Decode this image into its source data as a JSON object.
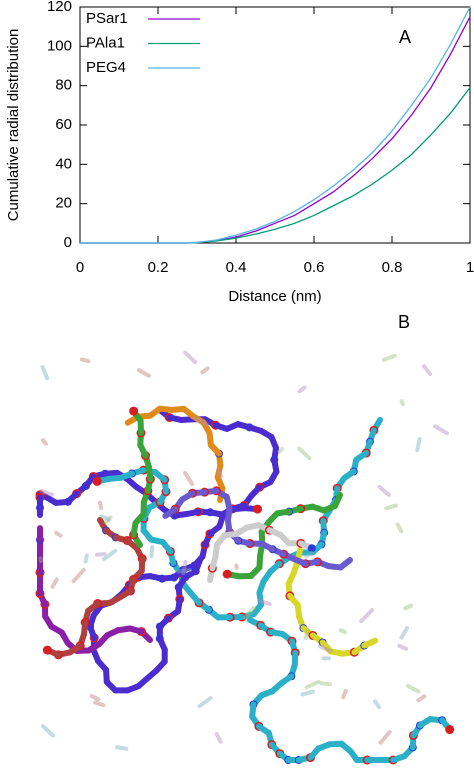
{
  "chart_data": {
    "type": "line",
    "xlabel": "Distance (nm)",
    "ylabel": "Cumulative radial distribution",
    "annotation": "A",
    "x": [
      0,
      0.1,
      0.2,
      0.28,
      0.3,
      0.35,
      0.4,
      0.45,
      0.5,
      0.55,
      0.6,
      0.65,
      0.7,
      0.75,
      0.8,
      0.85,
      0.9,
      0.95,
      1.0
    ],
    "series": [
      {
        "name": "PSar1",
        "color": "#9400d3",
        "values": [
          0,
          0,
          0,
          0,
          0.2,
          1.2,
          3,
          6,
          10,
          14,
          20,
          26,
          34,
          43,
          53,
          65,
          79,
          96,
          115
        ]
      },
      {
        "name": "PAla1",
        "color": "#009e73",
        "values": [
          0,
          0,
          0,
          0,
          0.2,
          1,
          2.5,
          4.5,
          7,
          10,
          14,
          19,
          24,
          30,
          37,
          45,
          55,
          66,
          79
        ]
      },
      {
        "name": "PEG4",
        "color": "#56b4e9",
        "values": [
          0,
          0,
          0,
          0,
          0.3,
          1.5,
          4,
          7,
          11,
          16,
          22,
          29,
          37,
          46,
          57,
          70,
          84,
          101,
          120
        ]
      }
    ],
    "xlim": [
      0,
      1
    ],
    "xticks": [
      0,
      0.2,
      0.4,
      0.6,
      0.8,
      1
    ],
    "ylim": [
      0,
      120
    ],
    "yticks": [
      0,
      20,
      40,
      60,
      80,
      100,
      120
    ],
    "legend": "upper-left",
    "grid": false
  },
  "panel_b": {
    "label": "B"
  }
}
